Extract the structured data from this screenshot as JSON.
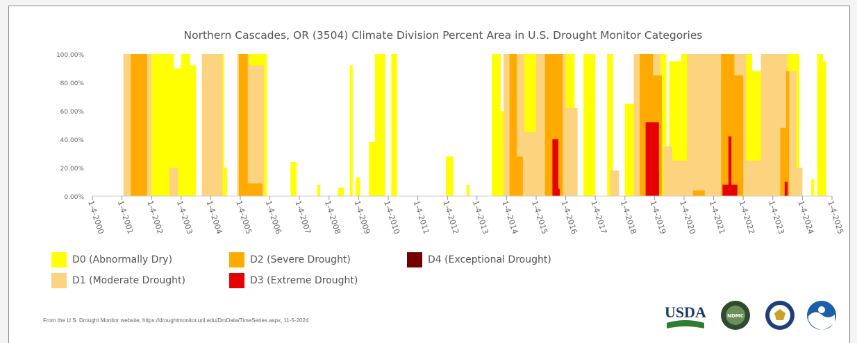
{
  "chart_data": {
    "type": "area",
    "stacked": false,
    "title": "Northern Cascades, OR (3504) Climate Division Percent Area in U.S. Drought Monitor Categories",
    "xlabel": "",
    "ylabel": "",
    "x_range": [
      "2000-01-04",
      "2025-01-04"
    ],
    "ylim": [
      0,
      100
    ],
    "grid": false,
    "legend_position": "bottom-left",
    "y_ticks": [
      "100.00%",
      "80.00%",
      "60.00%",
      "40.00%",
      "20.00%",
      "0.00%"
    ],
    "x_ticks": [
      "1-4-2000",
      "1-4-2001",
      "1-4-2002",
      "1-4-2003",
      "1-4-2004",
      "1-4-2005",
      "1-4-2006",
      "1-4-2007",
      "1-4-2008",
      "1-4-2009",
      "1-4-2010",
      "1-4-2011",
      "1-4-2012",
      "1-4-2013",
      "1-4-2014",
      "1-4-2015",
      "1-4-2016",
      "1-4-2017",
      "1-4-2018",
      "1-4-2019",
      "1-4-2020",
      "1-4-2021",
      "1-4-2022",
      "1-4-2023",
      "1-4-2024",
      "1-4-2025"
    ],
    "series": [
      {
        "name": "D0 (Abnormally Dry)",
        "color": "#ffff00",
        "episodes": [
          {
            "start": 2001.1,
            "end": 2002.5,
            "value": 100
          },
          {
            "start": 2002.5,
            "end": 2002.75,
            "value": 100
          },
          {
            "start": 2002.75,
            "end": 2003.0,
            "value": 90
          },
          {
            "start": 2003.0,
            "end": 2003.3,
            "value": 100
          },
          {
            "start": 2003.3,
            "end": 2003.5,
            "value": 92
          },
          {
            "start": 2003.85,
            "end": 2004.45,
            "value": 100
          },
          {
            "start": 2004.45,
            "end": 2004.55,
            "value": 20
          },
          {
            "start": 2005.0,
            "end": 2005.9,
            "value": 100
          },
          {
            "start": 2006.7,
            "end": 2006.9,
            "value": 24
          },
          {
            "start": 2007.6,
            "end": 2007.7,
            "value": 8
          },
          {
            "start": 2008.3,
            "end": 2008.5,
            "value": 6
          },
          {
            "start": 2008.7,
            "end": 2008.8,
            "value": 92
          },
          {
            "start": 2008.9,
            "end": 2009.05,
            "value": 13
          },
          {
            "start": 2009.35,
            "end": 2009.55,
            "value": 38
          },
          {
            "start": 2009.55,
            "end": 2009.9,
            "value": 100
          },
          {
            "start": 2010.1,
            "end": 2010.3,
            "value": 100
          },
          {
            "start": 2011.95,
            "end": 2012.2,
            "value": 28
          },
          {
            "start": 2012.65,
            "end": 2012.75,
            "value": 8
          },
          {
            "start": 2013.5,
            "end": 2013.8,
            "value": 100
          },
          {
            "start": 2013.8,
            "end": 2014.2,
            "value": 60
          },
          {
            "start": 2014.2,
            "end": 2016.3,
            "value": 100
          },
          {
            "start": 2016.6,
            "end": 2017.0,
            "value": 100
          },
          {
            "start": 2017.4,
            "end": 2017.6,
            "value": 100
          },
          {
            "start": 2018.0,
            "end": 2018.6,
            "value": 65
          },
          {
            "start": 2018.6,
            "end": 2019.4,
            "value": 100
          },
          {
            "start": 2019.5,
            "end": 2019.9,
            "value": 95
          },
          {
            "start": 2019.9,
            "end": 2021.2,
            "value": 100
          },
          {
            "start": 2021.2,
            "end": 2022.3,
            "value": 100
          },
          {
            "start": 2022.3,
            "end": 2022.9,
            "value": 88
          },
          {
            "start": 2022.9,
            "end": 2023.9,
            "value": 100
          },
          {
            "start": 2024.3,
            "end": 2024.4,
            "value": 12
          },
          {
            "start": 2024.5,
            "end": 2024.7,
            "value": 100
          },
          {
            "start": 2024.7,
            "end": 2024.8,
            "value": 95
          }
        ]
      },
      {
        "name": "D1 (Moderate Drought)",
        "color": "#fcd37f",
        "episodes": [
          {
            "start": 2001.05,
            "end": 2001.5,
            "value": 100
          },
          {
            "start": 2001.5,
            "end": 2002.0,
            "value": 100
          },
          {
            "start": 2002.6,
            "end": 2002.9,
            "value": 20
          },
          {
            "start": 2003.7,
            "end": 2004.4,
            "value": 100
          },
          {
            "start": 2004.9,
            "end": 2005.3,
            "value": 100
          },
          {
            "start": 2005.3,
            "end": 2005.8,
            "value": 92
          },
          {
            "start": 2013.9,
            "end": 2014.6,
            "value": 100
          },
          {
            "start": 2014.6,
            "end": 2015.0,
            "value": 45
          },
          {
            "start": 2015.0,
            "end": 2016.0,
            "value": 100
          },
          {
            "start": 2016.0,
            "end": 2016.4,
            "value": 62
          },
          {
            "start": 2017.5,
            "end": 2017.8,
            "value": 18
          },
          {
            "start": 2018.3,
            "end": 2019.2,
            "value": 100
          },
          {
            "start": 2019.3,
            "end": 2019.6,
            "value": 35
          },
          {
            "start": 2019.6,
            "end": 2020.1,
            "value": 25
          },
          {
            "start": 2020.1,
            "end": 2021.3,
            "value": 100
          },
          {
            "start": 2021.3,
            "end": 2022.1,
            "value": 100
          },
          {
            "start": 2022.1,
            "end": 2022.6,
            "value": 25
          },
          {
            "start": 2022.6,
            "end": 2023.5,
            "value": 100
          },
          {
            "start": 2023.5,
            "end": 2023.8,
            "value": 88
          },
          {
            "start": 2023.8,
            "end": 2024.0,
            "value": 20
          }
        ]
      },
      {
        "name": "D2 (Severe Drought)",
        "color": "#ffaa00",
        "episodes": [
          {
            "start": 2001.3,
            "end": 2001.85,
            "value": 100
          },
          {
            "start": 2004.95,
            "end": 2005.25,
            "value": 100
          },
          {
            "start": 2005.2,
            "end": 2005.75,
            "value": 9
          },
          {
            "start": 2014.1,
            "end": 2014.35,
            "value": 100
          },
          {
            "start": 2014.35,
            "end": 2014.55,
            "value": 28
          },
          {
            "start": 2015.3,
            "end": 2015.9,
            "value": 100
          },
          {
            "start": 2018.5,
            "end": 2018.95,
            "value": 100
          },
          {
            "start": 2018.95,
            "end": 2019.25,
            "value": 85
          },
          {
            "start": 2020.3,
            "end": 2020.7,
            "value": 4
          },
          {
            "start": 2021.25,
            "end": 2021.7,
            "value": 100
          },
          {
            "start": 2021.7,
            "end": 2022.0,
            "value": 85
          },
          {
            "start": 2023.25,
            "end": 2023.45,
            "value": 48
          },
          {
            "start": 2023.45,
            "end": 2023.55,
            "value": 88
          }
        ]
      },
      {
        "name": "D3 (Extreme Drought)",
        "color": "#e60000",
        "episodes": [
          {
            "start": 2015.55,
            "end": 2015.75,
            "value": 40
          },
          {
            "start": 2015.6,
            "end": 2015.8,
            "value": 5
          },
          {
            "start": 2018.7,
            "end": 2019.15,
            "value": 52
          },
          {
            "start": 2019.0,
            "end": 2019.15,
            "value": 18
          },
          {
            "start": 2021.3,
            "end": 2021.8,
            "value": 8
          },
          {
            "start": 2021.5,
            "end": 2021.6,
            "value": 42
          },
          {
            "start": 2023.4,
            "end": 2023.5,
            "value": 10
          }
        ]
      },
      {
        "name": "D4 (Exceptional Drought)",
        "color": "#730000",
        "episodes": []
      }
    ]
  },
  "legend": [
    {
      "label": "D0 (Abnormally Dry)",
      "color": "#ffff00"
    },
    {
      "label": "D1 (Moderate Drought)",
      "color": "#fcd37f"
    },
    {
      "label": "D2 (Severe Drought)",
      "color": "#ffaa00"
    },
    {
      "label": "D3 (Extreme Drought)",
      "color": "#e60000"
    },
    {
      "label": "D4 (Exceptional Drought)",
      "color": "#730000"
    }
  ],
  "footer": {
    "text": "From the U.S. Drought Monitor website, https://droughtmonitor.unl.edu/DmData/TimeSeries.aspx, 11-5-2024"
  },
  "logos": {
    "usda": "USDA",
    "ndmc": "NDMC",
    "doc": "DOC",
    "noaa": "NOAA"
  }
}
